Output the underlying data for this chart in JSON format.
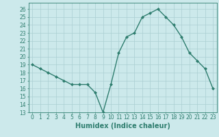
{
  "x": [
    0,
    1,
    2,
    3,
    4,
    5,
    6,
    7,
    8,
    9,
    10,
    11,
    12,
    13,
    14,
    15,
    16,
    17,
    18,
    19,
    20,
    21,
    22,
    23
  ],
  "y": [
    19,
    18.5,
    18,
    17.5,
    17,
    16.5,
    16.5,
    16.5,
    15.5,
    13,
    16.5,
    20.5,
    22.5,
    23,
    25,
    25.5,
    26,
    25,
    24,
    22.5,
    20.5,
    19.5,
    18.5,
    16
  ],
  "line_color": "#2e7d6e",
  "marker": "D",
  "marker_size": 2.0,
  "bg_color": "#cce9eb",
  "grid_color": "#aacfd2",
  "xlabel": "Humidex (Indice chaleur)",
  "ylabel": "",
  "xlim": [
    -0.5,
    23.5
  ],
  "ylim": [
    13,
    26.8
  ],
  "yticks": [
    13,
    14,
    15,
    16,
    17,
    18,
    19,
    20,
    21,
    22,
    23,
    24,
    25,
    26
  ],
  "xticks": [
    0,
    1,
    2,
    3,
    4,
    5,
    6,
    7,
    8,
    9,
    10,
    11,
    12,
    13,
    14,
    15,
    16,
    17,
    18,
    19,
    20,
    21,
    22,
    23
  ],
  "tick_label_fontsize": 5.5,
  "xlabel_fontsize": 7.0,
  "linewidth": 1.0
}
